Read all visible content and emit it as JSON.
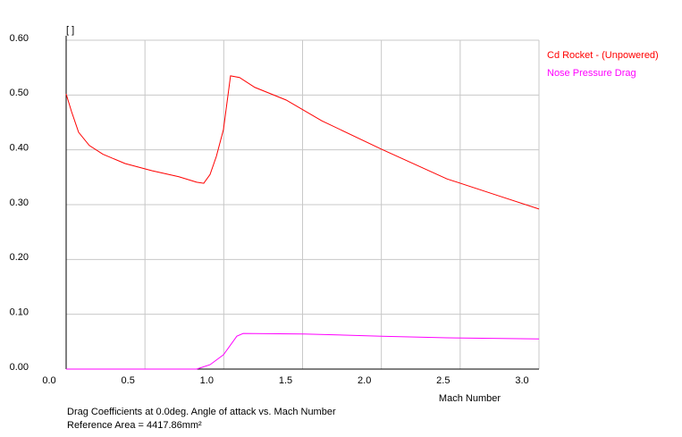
{
  "chart_data": {
    "type": "line",
    "y_axis_label": "[ ]",
    "x_axis_label": "Mach Number",
    "footer": [
      "Drag Coefficients at 0.0deg. Angle of attack vs. Mach Number",
      "Reference Area =  4417.86mm²"
    ],
    "grid": true,
    "legend": "top-right",
    "xlim": [
      0,
      3.0
    ],
    "ylim": [
      0,
      0.6
    ],
    "xticks": [
      {
        "value": 0,
        "label": "0.0"
      },
      0.5,
      {
        "value": 1,
        "label": "1.0"
      },
      1.5,
      {
        "value": 2,
        "label": "2.0"
      },
      2.5,
      {
        "value": 3,
        "label": "3.0"
      }
    ],
    "yticks": [
      {
        "value": 0,
        "label": "0.00"
      },
      {
        "value": 0.1,
        "label": "0.10"
      },
      {
        "value": 0.2,
        "label": "0.20"
      },
      {
        "value": 0.3,
        "label": "0.30"
      },
      {
        "value": 0.4,
        "label": "0.40"
      },
      {
        "value": 0.5,
        "label": "0.50"
      },
      {
        "value": 0.6,
        "label": "0.60"
      }
    ],
    "series": [
      {
        "name": "Cd Rocket - (Unpowered)",
        "color": "#ff0000",
        "x": [
          0,
          0.034,
          0.079,
          0.147,
          0.233,
          0.374,
          0.544,
          0.715,
          0.828,
          0.873,
          0.913,
          0.953,
          0.998,
          1.043,
          1.1,
          1.197,
          1.395,
          1.622,
          2.002,
          2.416,
          2.756,
          3.0
        ],
        "values": [
          0.502,
          0.47,
          0.432,
          0.408,
          0.392,
          0.375,
          0.362,
          0.351,
          0.341,
          0.339,
          0.355,
          0.388,
          0.437,
          0.535,
          0.532,
          0.514,
          0.491,
          0.453,
          0.401,
          0.347,
          0.315,
          0.292
        ]
      },
      {
        "name": "Nose Pressure Drag",
        "color": "#ff00ff",
        "x": [
          0,
          0.828,
          0.913,
          0.998,
          1.083,
          1.123,
          1.509,
          2.002,
          2.416,
          3.0
        ],
        "values": [
          0,
          0,
          0.008,
          0.026,
          0.06,
          0.065,
          0.064,
          0.06,
          0.057,
          0.055
        ]
      }
    ]
  }
}
